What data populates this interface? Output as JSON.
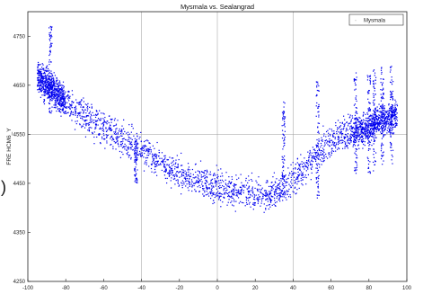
{
  "chart_data": {
    "type": "scatter",
    "title": "Mysmala vs. Sealangrad",
    "xlabel": "",
    "ylabel": "FRE HCM6_Y",
    "xlim": [
      -100,
      100
    ],
    "ylim": [
      4250,
      4800
    ],
    "x_ticks": [
      -100,
      -80,
      -60,
      -40,
      -20,
      0,
      20,
      40,
      60,
      80,
      100
    ],
    "x_tick_labels": [
      "-100",
      "-80",
      "-60",
      "-40",
      "-20",
      "0",
      "20",
      "40",
      "60",
      "80",
      "100"
    ],
    "y_ticks": [
      4250,
      4350,
      4450,
      4550,
      4650,
      4750
    ],
    "y_tick_labels": [
      "4250",
      "4350",
      "4450",
      "4550",
      "4650",
      "4750"
    ],
    "grid": true,
    "legend": {
      "position": "top-right",
      "entries": [
        "Mysmala"
      ]
    },
    "marker_color": "#0000ee",
    "series": [
      {
        "name": "Mysmala",
        "trend": {
          "x": [
            -95,
            -85,
            -75,
            -65,
            -55,
            -45,
            -35,
            -25,
            -15,
            -5,
            5,
            15,
            25,
            35,
            45,
            55,
            65,
            75,
            85,
            95
          ],
          "y": [
            4667,
            4635,
            4600,
            4575,
            4553,
            4531,
            4506,
            4482,
            4461,
            4447,
            4436,
            4429,
            4425,
            4441,
            4475,
            4519,
            4546,
            4557,
            4577,
            4586
          ]
        },
        "spread": 70,
        "clusters": [
          {
            "x": -88,
            "y_min": 4590,
            "y_max": 4770
          },
          {
            "x": -43,
            "y_min": 4450,
            "y_max": 4540
          },
          {
            "x": 35,
            "y_min": 4430,
            "y_max": 4620
          },
          {
            "x": 53,
            "y_min": 4420,
            "y_max": 4660
          },
          {
            "x": 73,
            "y_min": 4460,
            "y_max": 4680
          },
          {
            "x": 80,
            "y_min": 4470,
            "y_max": 4690
          },
          {
            "x": 83,
            "y_min": 4470,
            "y_max": 4690
          },
          {
            "x": 87,
            "y_min": 4480,
            "y_max": 4690
          },
          {
            "x": 92,
            "y_min": 4490,
            "y_max": 4690
          }
        ]
      }
    ]
  },
  "page": {
    "margin_glyph": ")"
  }
}
